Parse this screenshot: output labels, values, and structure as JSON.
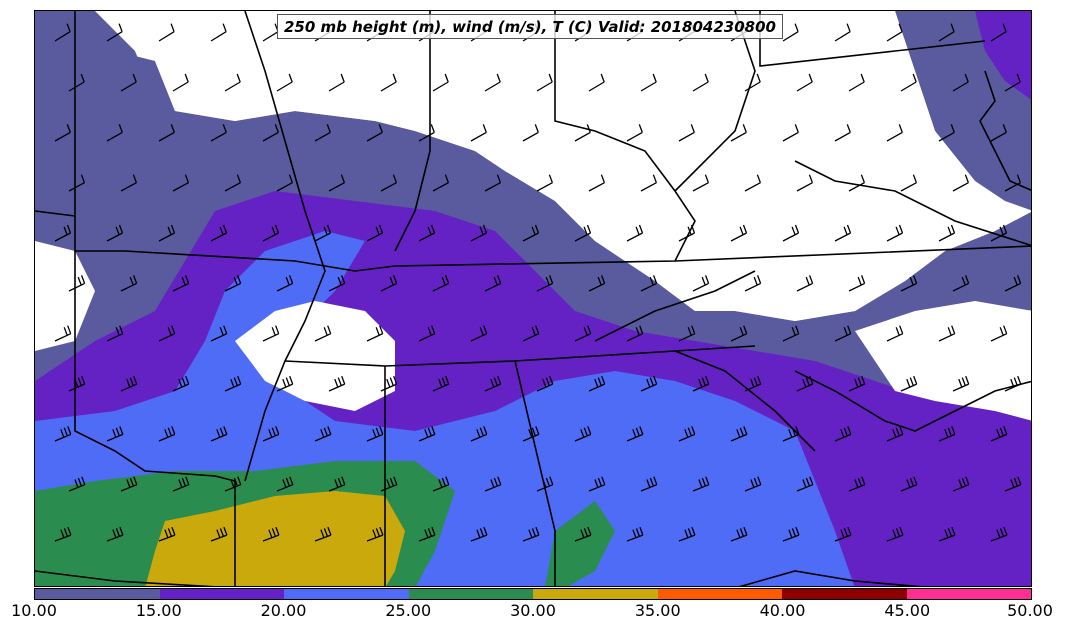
{
  "title": "250 mb height (m), wind (m/s), T (C) Valid: 201804230800",
  "colorbar": {
    "ticks": [
      "10.00",
      "15.00",
      "20.00",
      "25.00",
      "30.00",
      "35.00",
      "40.00",
      "45.00",
      "50.00"
    ],
    "colors": [
      "#5a5a9e",
      "#6421c4",
      "#4f6cf7",
      "#2a8c4f",
      "#c9a90b",
      "#ff5a00",
      "#8e0000",
      "#ff2e92"
    ]
  },
  "map": {
    "background_color": "#ffffff",
    "boundary_color": "#000000",
    "barb_color": "#000000"
  }
}
